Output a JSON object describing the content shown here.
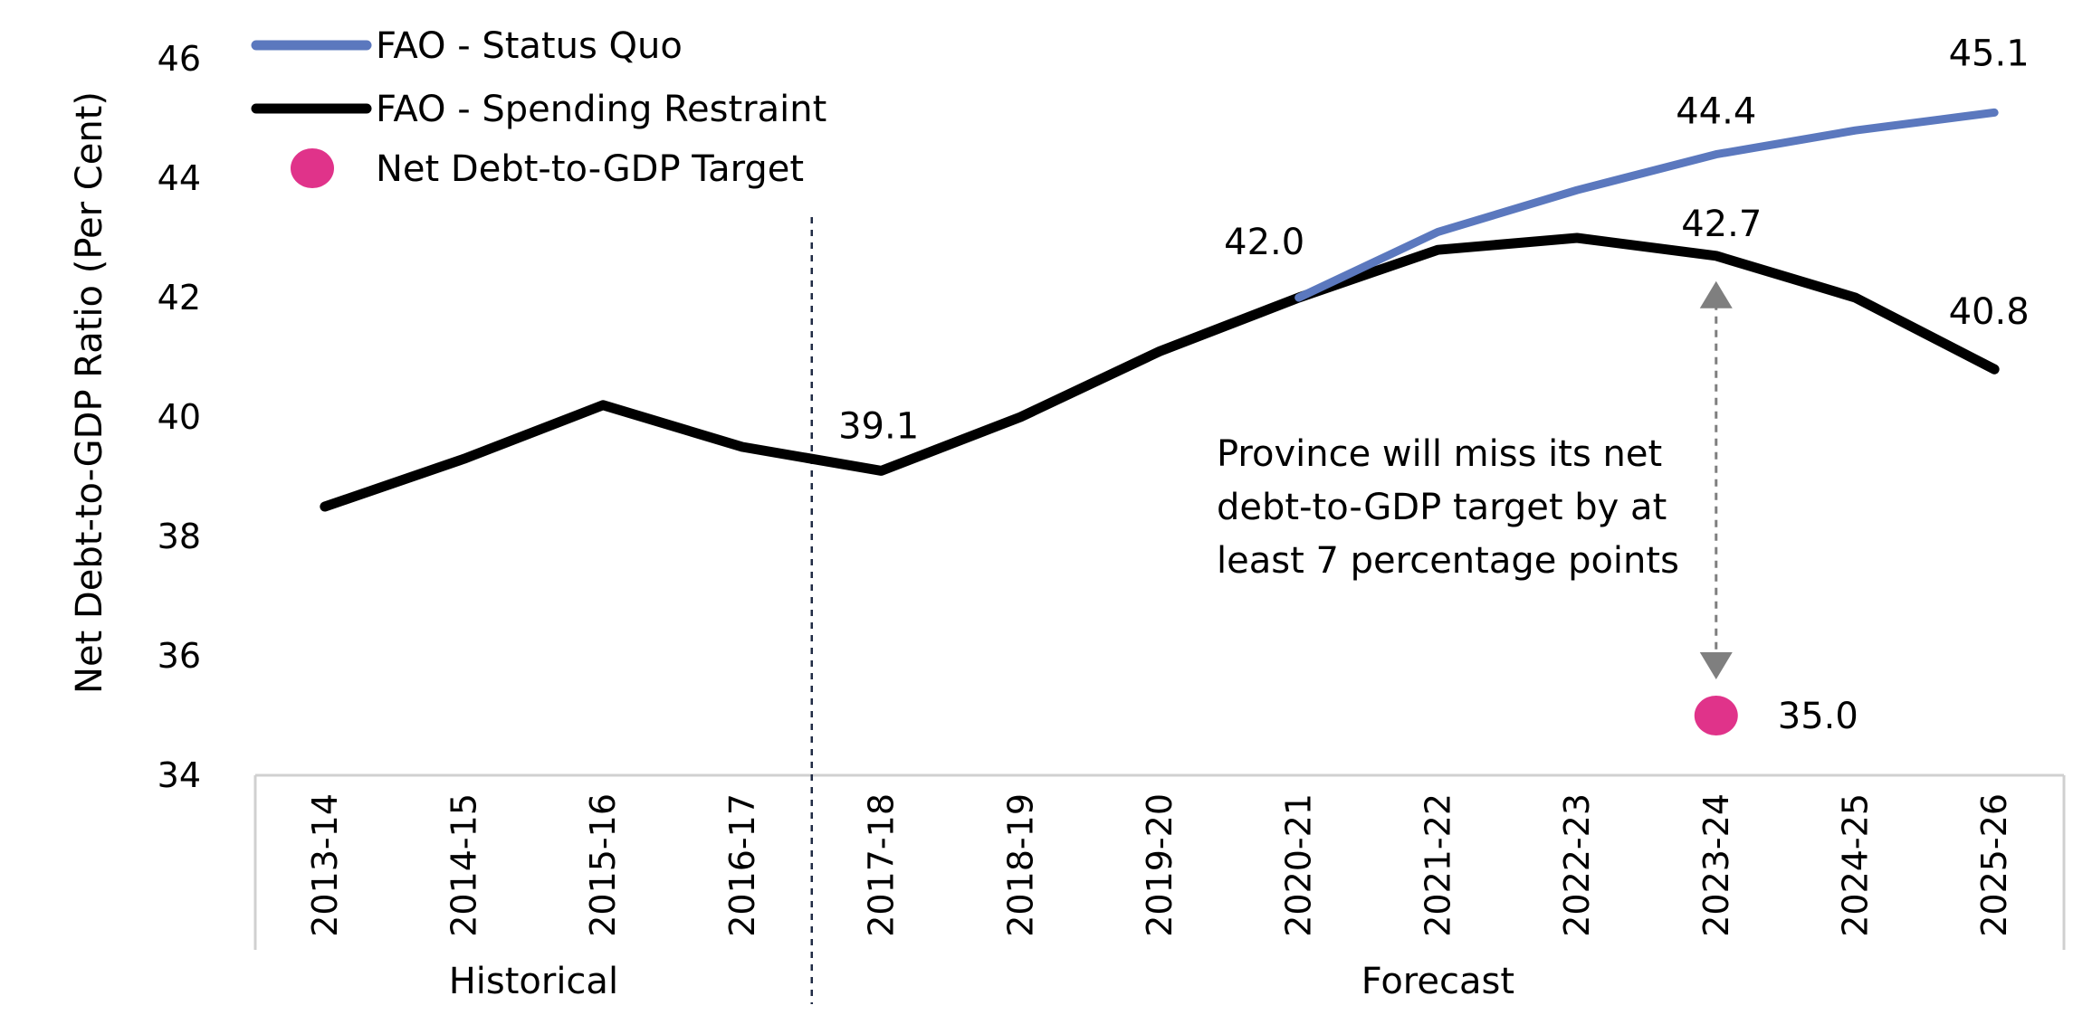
{
  "chart_data": {
    "type": "line",
    "title": "",
    "xlabel": "",
    "ylabel": "Net Debt-to-GDP Ratio (Per Cent)",
    "ylim": [
      34,
      46
    ],
    "yticks": [
      34,
      36,
      38,
      40,
      42,
      44,
      46
    ],
    "grid": false,
    "legend_position": "top-left",
    "categories": [
      "2013-14",
      "2014-15",
      "2015-16",
      "2016-17",
      "2017-18",
      "2018-19",
      "2019-20",
      "2020-21",
      "2021-22",
      "2022-23",
      "2023-24",
      "2024-25",
      "2025-26"
    ],
    "series": [
      {
        "name": "FAO - Status Quo",
        "color": "#5B78BE",
        "values": [
          null,
          null,
          null,
          null,
          null,
          null,
          null,
          42.0,
          43.1,
          43.8,
          44.4,
          44.8,
          45.1
        ]
      },
      {
        "name": "FAO - Spending Restraint",
        "color": "#000000",
        "values": [
          38.5,
          39.3,
          40.2,
          39.5,
          39.1,
          40.0,
          41.1,
          42.0,
          42.8,
          43.0,
          42.7,
          42.0,
          40.8
        ]
      },
      {
        "name": "Net Debt-to-GDP Target",
        "color": "#E0338A",
        "type": "scatter",
        "points": [
          {
            "x": "2023-24",
            "y": 35.0
          }
        ]
      }
    ],
    "data_labels": [
      {
        "text": "39.1",
        "x": "2017-18",
        "y": 39.1,
        "series": "FAO - Spending Restraint"
      },
      {
        "text": "42.0",
        "x": "2020-21",
        "y": 42.0,
        "series": "FAO - Spending Restraint"
      },
      {
        "text": "44.4",
        "x": "2023-24",
        "y": 44.4,
        "series": "FAO - Status Quo"
      },
      {
        "text": "45.1",
        "x": "2025-26",
        "y": 45.1,
        "series": "FAO - Status Quo"
      },
      {
        "text": "42.7",
        "x": "2023-24",
        "y": 42.7,
        "series": "FAO - Spending Restraint"
      },
      {
        "text": "40.8",
        "x": "2025-26",
        "y": 40.8,
        "series": "FAO - Spending Restraint"
      },
      {
        "text": "35.0",
        "x": "2023-24",
        "y": 35.0,
        "series": "Net Debt-to-GDP Target"
      }
    ],
    "annotation": {
      "lines": [
        "Province will miss its net",
        "debt-to-GDP target by at",
        "least 7 percentage points"
      ],
      "arrow_from": 42.7,
      "arrow_to": 35.0
    },
    "groups": [
      {
        "label": "Historical",
        "categories": [
          "2013-14",
          "2014-15",
          "2015-16",
          "2016-17"
        ]
      },
      {
        "label": "Forecast",
        "categories": [
          "2017-18",
          "2018-19",
          "2019-20",
          "2020-21",
          "2021-22",
          "2022-23",
          "2023-24",
          "2024-25",
          "2025-26"
        ]
      }
    ]
  }
}
